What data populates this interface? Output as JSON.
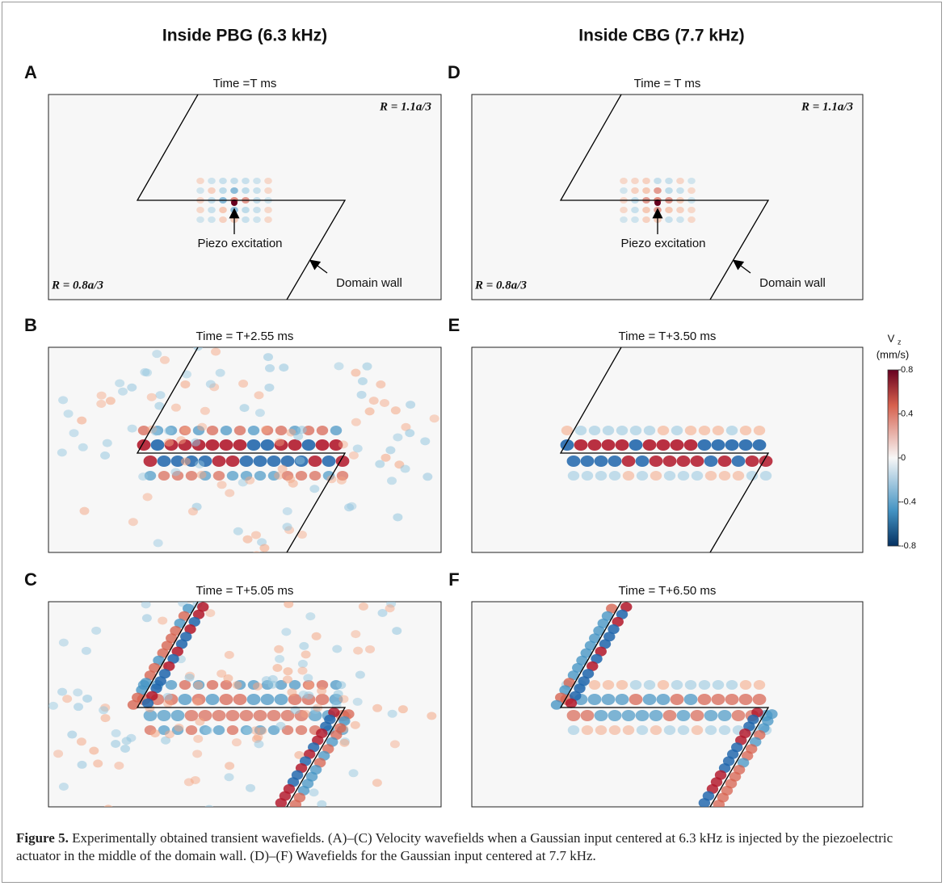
{
  "figure": {
    "columns": [
      "Inside PBG (6.3 kHz)",
      "Inside CBG (7.7 kHz)"
    ],
    "panels": [
      {
        "letter": "A",
        "time": "Time =T ms",
        "labels": [
          "R = 1.1a/3",
          "R = 0.8a/3"
        ],
        "annotations": [
          "Piezo excitation",
          "Domain wall"
        ]
      },
      {
        "letter": "B",
        "time": "Time = T+2.55 ms"
      },
      {
        "letter": "C",
        "time": "Time = T+5.05 ms"
      },
      {
        "letter": "D",
        "time": "Time = T ms",
        "labels": [
          "R = 1.1a/3",
          "R = 0.8a/3"
        ],
        "annotations": [
          "Piezo excitation",
          "Domain wall"
        ]
      },
      {
        "letter": "E",
        "time": "Time = T+3.50 ms"
      },
      {
        "letter": "F",
        "time": "Time = T+6.50 ms"
      }
    ],
    "colorbar": {
      "symbol": "V",
      "subscript": "z",
      "unit": "(mm/s)",
      "clim": [
        -0.8,
        0.8
      ],
      "ticks": [
        0.8,
        0.4,
        0,
        -0.4,
        -0.8
      ]
    }
  },
  "caption": {
    "label": "Figure 5.",
    "text": "Experimentally obtained transient wavefields. (A)–(C) Velocity wavefields when a Gaussian input centered at 6.3 kHz is injected by the piezoelectric actuator in the middle of the domain wall. (D)–(F) Wavefields for the Gaussian input centered at 7.7 kHz."
  }
}
